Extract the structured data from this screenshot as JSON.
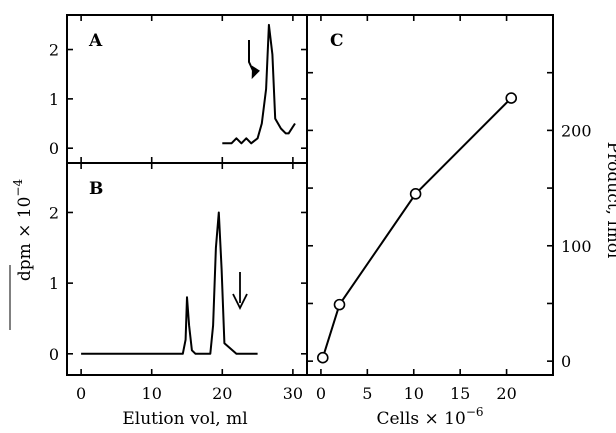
{
  "chart_data": [
    {
      "panel": "A",
      "type": "line",
      "xlabel": "Elution vol, ml",
      "ylabel": "dpm × 10⁻⁴",
      "xlim": [
        -2,
        32
      ],
      "ylim": [
        -0.3,
        2.7
      ],
      "xticks": [
        0,
        10,
        20,
        30
      ],
      "yticks": [
        0,
        1,
        2
      ],
      "x_tick_labels_shown": false,
      "annotation": "arrow",
      "series": [
        {
          "x": [
            20,
            21.3,
            22,
            22.7,
            23.4,
            24.1,
            25,
            25.6,
            26.2,
            26.6,
            27.1,
            27.5,
            28.3,
            29,
            29.4,
            30.3
          ],
          "y": [
            0.1,
            0.1,
            0.2,
            0.1,
            0.2,
            0.1,
            0.2,
            0.5,
            1.2,
            2.5,
            1.9,
            0.6,
            0.4,
            0.3,
            0.3,
            0.5
          ]
        }
      ]
    },
    {
      "panel": "B",
      "type": "line",
      "xlabel": "Elution vol, ml",
      "ylabel": "dpm × 10⁻⁴",
      "xlim": [
        -2,
        32
      ],
      "ylim": [
        -0.3,
        2.7
      ],
      "xticks": [
        0,
        10,
        20,
        30
      ],
      "yticks": [
        0,
        1,
        2
      ],
      "annotation": "arrow",
      "series": [
        {
          "x": [
            0,
            14.4,
            14.8,
            15,
            15.3,
            15.7,
            16.2,
            18.3,
            18.7,
            19.1,
            19.5,
            19.9,
            20.3,
            22,
            25
          ],
          "y": [
            0,
            0,
            0.2,
            0.8,
            0.4,
            0.05,
            0,
            0,
            0.4,
            1.5,
            2.0,
            1.2,
            0.15,
            0,
            0
          ]
        }
      ]
    },
    {
      "panel": "C",
      "type": "line",
      "xlabel": "Cells × 10⁻⁶",
      "ylabel": "Product, fmol",
      "xlim": [
        -1.5,
        25
      ],
      "ylim": [
        -12,
        300
      ],
      "xticks": [
        0,
        5,
        10,
        15,
        20
      ],
      "yticks": [
        0,
        100,
        200
      ],
      "minor_yticks": [
        50,
        150,
        250
      ],
      "series": [
        {
          "x": [
            0.2,
            2,
            10.2,
            20.5
          ],
          "y": [
            3,
            49,
            145,
            228
          ],
          "markers": "open-circle"
        }
      ]
    }
  ],
  "labels": {
    "panelA": "A",
    "panelB": "B",
    "panelC": "C",
    "leftYTitle": "dpm × 10",
    "leftYTitleExp": "−4",
    "leftXTitle": "Elution vol, ml",
    "rightYTitle": "Product, fmol",
    "rightXTitle": "Cells × 10",
    "rightXTitleExp": "−6"
  }
}
